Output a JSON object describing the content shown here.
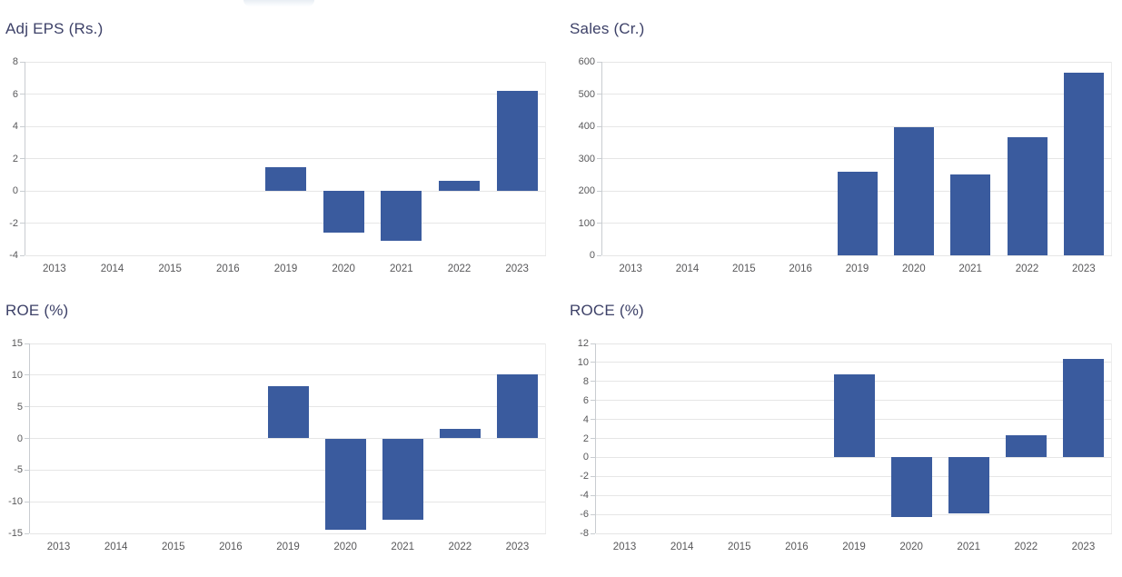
{
  "page": {
    "background": "#ffffff",
    "partial_tooltip_visible": true
  },
  "colors": {
    "bar": "#3a5b9e",
    "title": "#3d4168",
    "tick": "#58585a",
    "gridline": "#e6e6e6",
    "axis_line": "#c9cdd1"
  },
  "chart_data": [
    {
      "type": "bar",
      "title": "Adj EPS (Rs.)",
      "categories": [
        "2013",
        "2014",
        "2015",
        "2016",
        "2019",
        "2020",
        "2021",
        "2022",
        "2023"
      ],
      "values": [
        null,
        null,
        null,
        null,
        1.45,
        -2.6,
        -3.1,
        0.6,
        6.2
      ],
      "xlabel": "",
      "ylabel": "",
      "ylim": [
        -4,
        8
      ],
      "yticks": [
        8,
        6,
        4,
        2,
        0,
        -2,
        -4
      ],
      "grid": true,
      "legend": "none"
    },
    {
      "type": "bar",
      "title": "Sales (Cr.)",
      "categories": [
        "2013",
        "2014",
        "2015",
        "2016",
        "2019",
        "2020",
        "2021",
        "2022",
        "2023"
      ],
      "values": [
        null,
        null,
        null,
        null,
        259,
        398,
        250,
        365,
        566
      ],
      "xlabel": "",
      "ylabel": "",
      "ylim": [
        0,
        600
      ],
      "yticks": [
        600,
        500,
        400,
        300,
        200,
        100,
        0
      ],
      "grid": true,
      "legend": "none"
    },
    {
      "type": "bar",
      "title": "ROE (%)",
      "categories": [
        "2013",
        "2014",
        "2015",
        "2016",
        "2019",
        "2020",
        "2021",
        "2022",
        "2023"
      ],
      "values": [
        null,
        null,
        null,
        null,
        8.2,
        -14.4,
        -12.8,
        1.5,
        10.1
      ],
      "xlabel": "",
      "ylabel": "",
      "ylim": [
        -15,
        15
      ],
      "yticks": [
        15,
        10,
        5,
        0,
        -5,
        -10,
        -15
      ],
      "grid": true,
      "legend": "none"
    },
    {
      "type": "bar",
      "title": "ROCE (%)",
      "categories": [
        "2013",
        "2014",
        "2015",
        "2016",
        "2019",
        "2020",
        "2021",
        "2022",
        "2023"
      ],
      "values": [
        null,
        null,
        null,
        null,
        8.7,
        -6.3,
        -5.9,
        2.3,
        10.4
      ],
      "xlabel": "",
      "ylabel": "",
      "ylim": [
        -8,
        12
      ],
      "yticks": [
        12,
        10,
        8,
        6,
        4,
        2,
        0,
        -2,
        -4,
        -6,
        -8
      ],
      "grid": true,
      "legend": "none"
    }
  ],
  "layout_note": ""
}
